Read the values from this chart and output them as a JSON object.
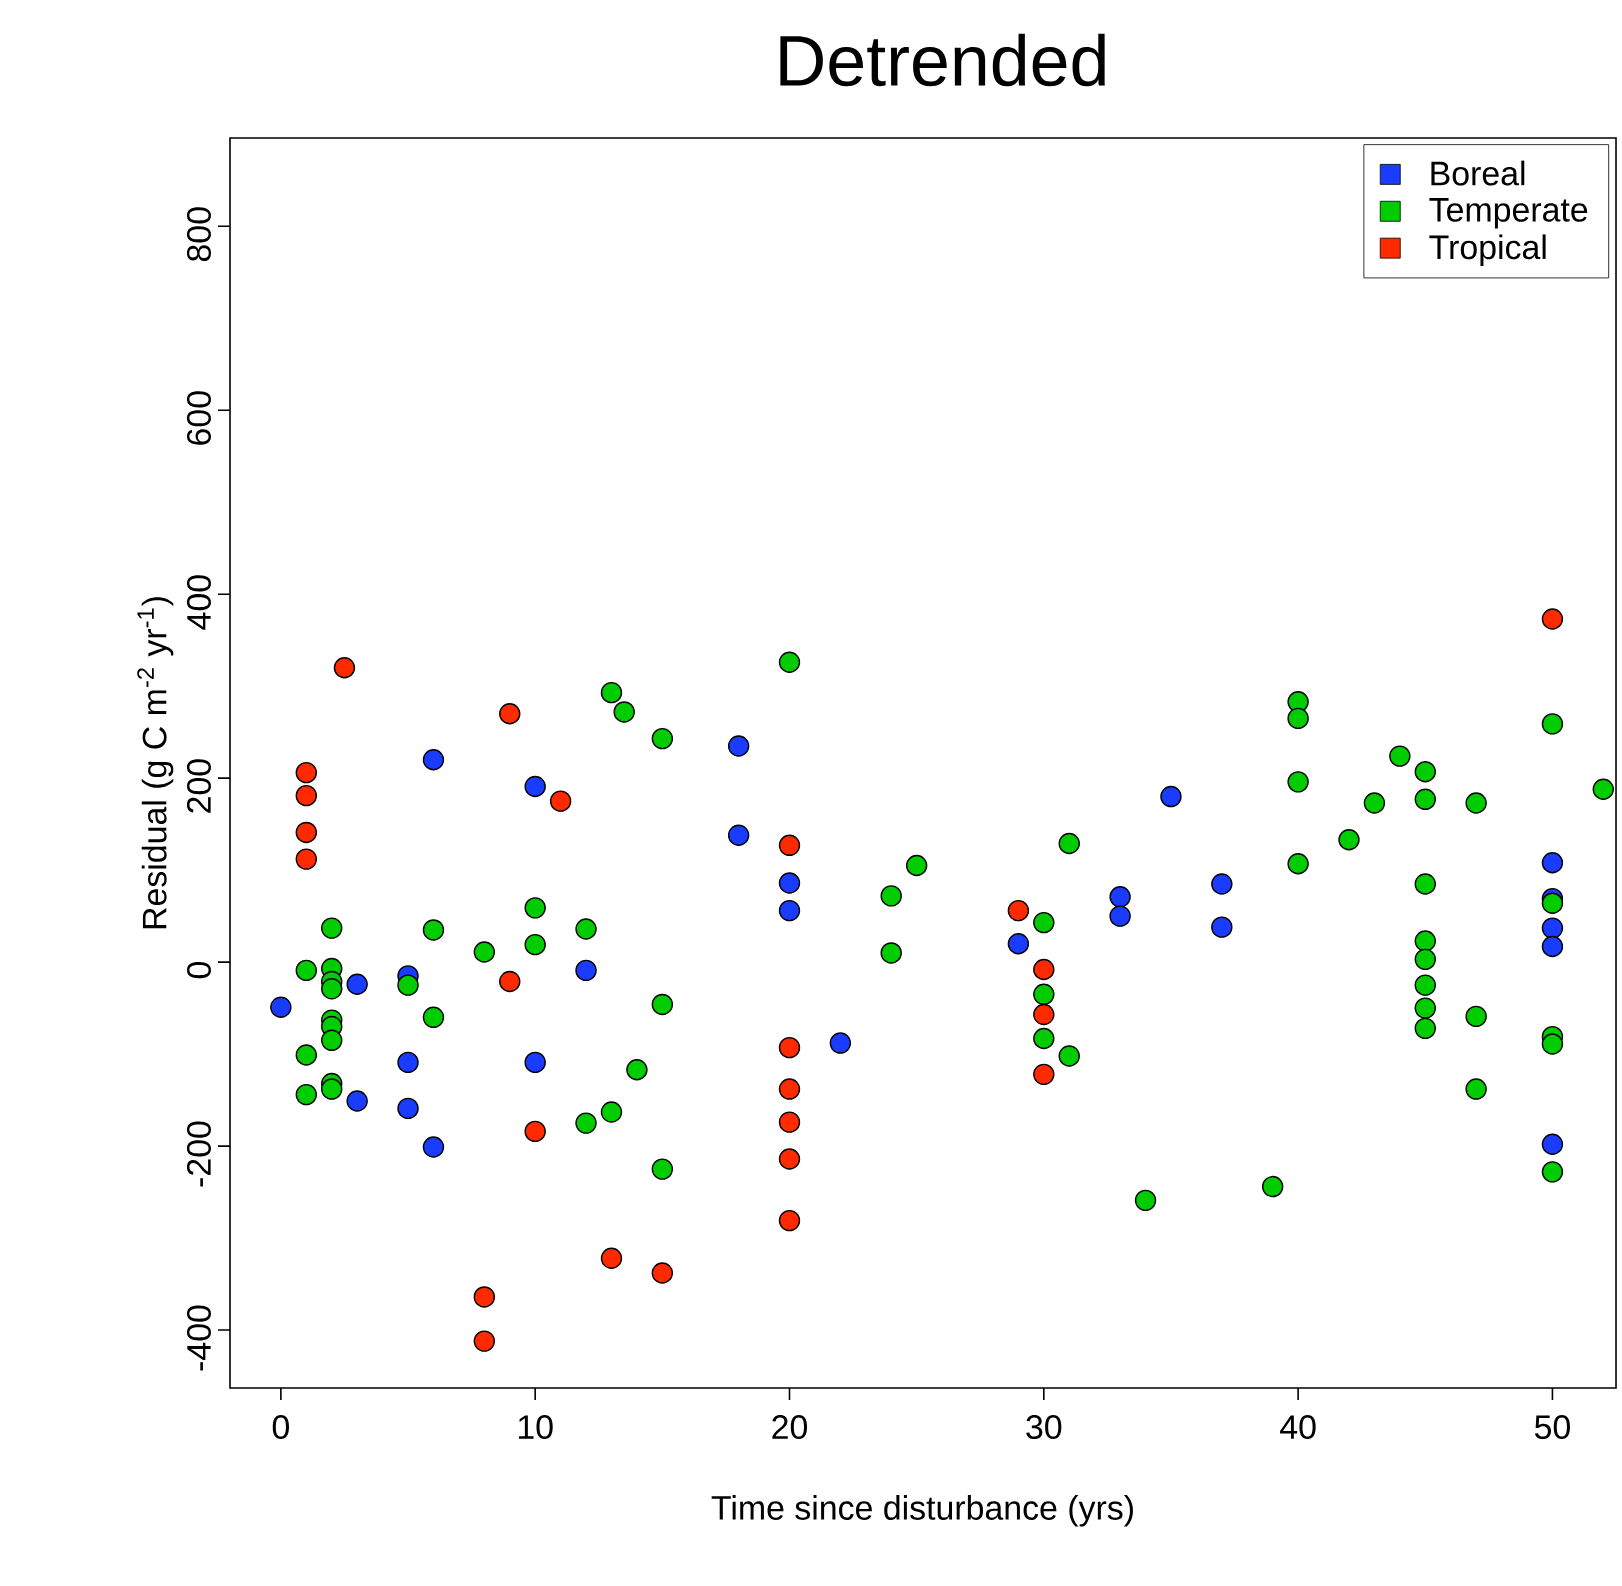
{
  "chart_data": {
    "type": "scatter",
    "title": "Detrended",
    "xlabel": "Time since disturbance (yrs)",
    "ylabel": "Residual (g C m$^{-2}$ yr$^{-1}$)",
    "xlim": [
      -2,
      52.5
    ],
    "ylim": [
      -463,
      896
    ],
    "xticks": [
      0,
      10,
      20,
      30,
      40,
      50
    ],
    "yticks": [
      -400,
      -200,
      0,
      200,
      400,
      600,
      800
    ],
    "legend": "top right",
    "marker": "circle",
    "grid": false,
    "series": [
      {
        "name": "Boreal",
        "color": "#1a3cff",
        "x": [
          0,
          3,
          3,
          5,
          5,
          5,
          6,
          6,
          10,
          10,
          12,
          18,
          18,
          20,
          20,
          22,
          29,
          33,
          33,
          35,
          37,
          37,
          50,
          50,
          50,
          50,
          50
        ],
        "values": [
          -49,
          -24,
          -151,
          -15,
          -109,
          -159,
          220,
          -201,
          191,
          -109,
          -9,
          235,
          138,
          86,
          56,
          -88,
          20,
          71,
          50,
          180,
          85,
          38,
          108,
          69,
          37,
          17,
          -198
        ]
      },
      {
        "name": "Temperate",
        "color": "#00cc00",
        "x": [
          1,
          1,
          1,
          2,
          2,
          2,
          2,
          2,
          2,
          2,
          2,
          2,
          5,
          6,
          6,
          8,
          10,
          10,
          12,
          12,
          13,
          13.5,
          13,
          14,
          15,
          15,
          15,
          20,
          24,
          24,
          25,
          30,
          30,
          30,
          31,
          31,
          34,
          39,
          40,
          40,
          40,
          40,
          42,
          43,
          44,
          45,
          45,
          45,
          45,
          45,
          45,
          45,
          45,
          47,
          47,
          47,
          50,
          50,
          50,
          50,
          50,
          52
        ],
        "values": [
          -9,
          -101,
          -144,
          37,
          -7,
          -21,
          -29,
          -63,
          -70,
          -85,
          -132,
          -138,
          -25,
          35,
          -60,
          11,
          59,
          19,
          36,
          -175,
          293,
          272,
          -163,
          -117,
          243,
          -46,
          -225,
          326,
          72,
          10,
          105,
          43,
          -35,
          -83,
          129,
          -102,
          -259,
          -244,
          283,
          265,
          196,
          107,
          133,
          173,
          224,
          207,
          177,
          85,
          23,
          3,
          -25,
          -50,
          -72,
          173,
          -59,
          -138,
          259,
          64,
          -81,
          -89,
          -228,
          188
        ]
      },
      {
        "name": "Tropical",
        "color": "#ff2a00",
        "x": [
          1,
          1,
          1,
          1,
          2.5,
          8,
          8,
          9,
          9,
          10,
          11,
          13,
          15,
          20,
          20,
          20,
          20,
          20,
          20,
          29,
          30,
          30,
          30,
          50
        ],
        "values": [
          206,
          181,
          141,
          112,
          320,
          -364,
          -412,
          270,
          -21,
          -184,
          175,
          -322,
          -338,
          127,
          -93,
          -138,
          -174,
          -214,
          -281,
          56,
          -8,
          -57,
          -122,
          373
        ]
      }
    ]
  }
}
